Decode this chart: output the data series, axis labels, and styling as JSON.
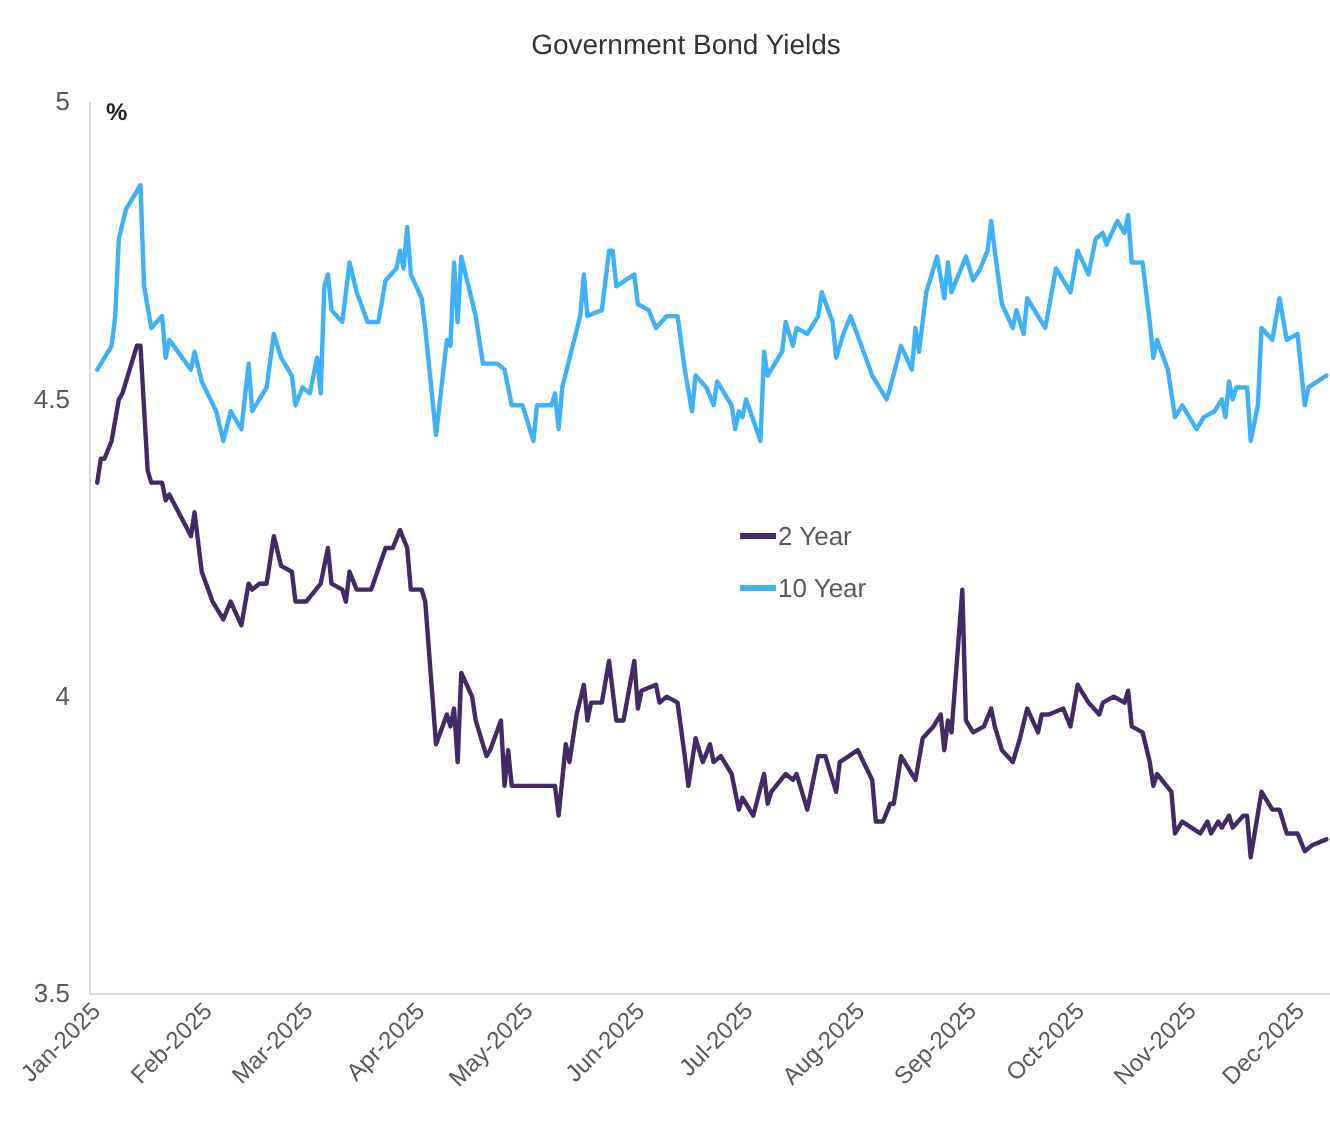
{
  "chart_data": {
    "type": "line",
    "title": "Government Bond Yields",
    "ylabel": "%",
    "xlim": [
      "2024-12-30",
      "2025-12-09"
    ],
    "xticks": [
      {
        "value": "2025-01-01",
        "label": "Jan-2025"
      },
      {
        "value": "2025-02-01",
        "label": "Feb-2025"
      },
      {
        "value": "2025-03-01",
        "label": "Mar-2025"
      },
      {
        "value": "2025-04-01",
        "label": "Apr-2025"
      },
      {
        "value": "2025-05-01",
        "label": "May-2025"
      },
      {
        "value": "2025-06-01",
        "label": "Jun-2025"
      },
      {
        "value": "2025-07-01",
        "label": "Jul-2025"
      },
      {
        "value": "2025-08-01",
        "label": "Aug-2025"
      },
      {
        "value": "2025-09-01",
        "label": "Sep-2025"
      },
      {
        "value": "2025-10-01",
        "label": "Oct-2025"
      },
      {
        "value": "2025-11-01",
        "label": "Nov-2025"
      },
      {
        "value": "2025-12-01",
        "label": "Dec-2025"
      }
    ],
    "ylim": [
      3.5,
      5
    ],
    "yticks": [
      3.5,
      4,
      4.5,
      5
    ],
    "legend": "center",
    "marker": "none",
    "line_style": "solid",
    "series": [
      {
        "name": "2 Year",
        "color": "#432a66",
        "x": [
          "2025-01-01",
          "2025-01-02",
          "2025-01-03",
          "2025-01-05",
          "2025-01-07",
          "2025-01-08",
          "2025-01-12",
          "2025-01-13",
          "2025-01-15",
          "2025-01-16",
          "2025-01-19",
          "2025-01-20",
          "2025-01-21",
          "2025-01-27",
          "2025-01-28",
          "2025-01-30",
          "2025-02-02",
          "2025-02-05",
          "2025-02-07",
          "2025-02-10",
          "2025-02-12",
          "2025-02-13",
          "2025-02-15",
          "2025-02-17",
          "2025-02-19",
          "2025-02-21",
          "2025-02-24",
          "2025-02-25",
          "2025-02-28",
          "2025-03-04",
          "2025-03-06",
          "2025-03-07",
          "2025-03-10",
          "2025-03-11",
          "2025-03-12",
          "2025-03-14",
          "2025-03-18",
          "2025-03-22",
          "2025-03-24",
          "2025-03-26",
          "2025-03-28",
          "2025-03-29",
          "2025-04-01",
          "2025-04-02",
          "2025-04-05",
          "2025-04-08",
          "2025-04-09",
          "2025-04-10",
          "2025-04-11",
          "2025-04-12",
          "2025-04-15",
          "2025-04-16",
          "2025-04-19",
          "2025-04-20",
          "2025-04-23",
          "2025-04-24",
          "2025-04-25",
          "2025-04-26",
          "2025-05-02",
          "2025-05-05",
          "2025-05-08",
          "2025-05-09",
          "2025-05-11",
          "2025-05-12",
          "2025-05-14",
          "2025-05-16",
          "2025-05-17",
          "2025-05-18",
          "2025-05-21",
          "2025-05-23",
          "2025-05-25",
          "2025-05-27",
          "2025-05-30",
          "2025-05-31",
          "2025-06-01",
          "2025-06-05",
          "2025-06-06",
          "2025-06-08",
          "2025-06-11",
          "2025-06-13",
          "2025-06-14",
          "2025-06-16",
          "2025-06-18",
          "2025-06-20",
          "2025-06-21",
          "2025-06-23",
          "2025-06-26",
          "2025-06-28",
          "2025-06-29",
          "2025-07-02",
          "2025-07-05",
          "2025-07-06",
          "2025-07-07",
          "2025-07-11",
          "2025-07-13",
          "2025-07-14",
          "2025-07-17",
          "2025-07-20",
          "2025-07-22",
          "2025-07-25",
          "2025-07-26",
          "2025-07-31",
          "2025-08-04",
          "2025-08-05",
          "2025-08-07",
          "2025-08-09",
          "2025-08-10",
          "2025-08-12",
          "2025-08-16",
          "2025-08-18",
          "2025-08-21",
          "2025-08-23",
          "2025-08-24",
          "2025-08-25",
          "2025-08-26",
          "2025-08-29",
          "2025-08-30",
          "2025-09-01",
          "2025-09-04",
          "2025-09-06",
          "2025-09-07",
          "2025-09-09",
          "2025-09-12",
          "2025-09-14",
          "2025-09-16",
          "2025-09-19",
          "2025-09-20",
          "2025-09-22",
          "2025-09-26",
          "2025-09-28",
          "2025-09-30",
          "2025-10-03",
          "2025-10-06",
          "2025-10-07",
          "2025-10-10",
          "2025-10-13",
          "2025-10-14",
          "2025-10-15",
          "2025-10-18",
          "2025-10-20",
          "2025-10-21",
          "2025-10-22",
          "2025-10-26",
          "2025-10-27",
          "2025-10-29",
          "2025-11-03",
          "2025-11-05",
          "2025-11-06",
          "2025-11-08",
          "2025-11-09",
          "2025-11-11",
          "2025-11-12",
          "2025-11-15",
          "2025-11-16",
          "2025-11-17",
          "2025-11-20",
          "2025-11-23",
          "2025-11-25",
          "2025-11-27",
          "2025-11-30",
          "2025-12-02",
          "2025-12-04",
          "2025-12-08"
        ],
        "values": [
          4.36,
          4.4,
          4.4,
          4.43,
          4.5,
          4.51,
          4.59,
          4.59,
          4.38,
          4.36,
          4.36,
          4.33,
          4.34,
          4.27,
          4.31,
          4.21,
          4.16,
          4.13,
          4.16,
          4.12,
          4.19,
          4.18,
          4.19,
          4.19,
          4.27,
          4.22,
          4.21,
          4.16,
          4.16,
          4.19,
          4.25,
          4.19,
          4.18,
          4.16,
          4.21,
          4.18,
          4.18,
          4.25,
          4.25,
          4.28,
          4.25,
          4.18,
          4.18,
          4.16,
          3.92,
          3.97,
          3.95,
          3.98,
          3.89,
          4.04,
          4.0,
          3.96,
          3.9,
          3.91,
          3.96,
          3.85,
          3.91,
          3.85,
          3.85,
          3.85,
          3.85,
          3.8,
          3.92,
          3.89,
          3.97,
          4.02,
          3.96,
          3.99,
          3.99,
          4.06,
          3.96,
          3.96,
          4.06,
          3.98,
          4.01,
          4.02,
          3.99,
          4.0,
          3.99,
          3.9,
          3.85,
          3.93,
          3.89,
          3.92,
          3.89,
          3.9,
          3.87,
          3.81,
          3.83,
          3.8,
          3.87,
          3.82,
          3.84,
          3.87,
          3.86,
          3.87,
          3.81,
          3.9,
          3.9,
          3.84,
          3.89,
          3.91,
          3.86,
          3.79,
          3.79,
          3.82,
          3.82,
          3.9,
          3.86,
          3.93,
          3.95,
          3.97,
          3.91,
          3.96,
          3.94,
          4.18,
          3.96,
          3.94,
          3.95,
          3.98,
          3.95,
          3.91,
          3.89,
          3.93,
          3.98,
          3.94,
          3.97,
          3.97,
          3.98,
          3.95,
          4.02,
          3.99,
          3.97,
          3.99,
          4.0,
          3.99,
          4.01,
          3.95,
          3.94,
          3.89,
          3.85,
          3.87,
          3.84,
          3.77,
          3.79,
          3.77,
          3.79,
          3.77,
          3.79,
          3.78,
          3.8,
          3.78,
          3.8,
          3.8,
          3.73,
          3.84,
          3.81,
          3.81,
          3.77,
          3.77,
          3.74,
          3.75,
          3.76
        ]
      },
      {
        "name": "10 Year",
        "color": "#3fb1fb",
        "x": [
          "2025-01-01",
          "2025-01-05",
          "2025-01-06",
          "2025-01-07",
          "2025-01-09",
          "2025-01-13",
          "2025-01-14",
          "2025-01-16",
          "2025-01-19",
          "2025-01-20",
          "2025-01-21",
          "2025-01-27",
          "2025-01-28",
          "2025-01-30",
          "2025-02-03",
          "2025-02-05",
          "2025-02-07",
          "2025-02-10",
          "2025-02-12",
          "2025-02-13",
          "2025-02-17",
          "2025-02-19",
          "2025-02-21",
          "2025-02-24",
          "2025-02-25",
          "2025-02-27",
          "2025-03-01",
          "2025-03-03",
          "2025-03-04",
          "2025-03-05",
          "2025-03-06",
          "2025-03-07",
          "2025-03-10",
          "2025-03-12",
          "2025-03-14",
          "2025-03-17",
          "2025-03-20",
          "2025-03-22",
          "2025-03-25",
          "2025-03-26",
          "2025-03-27",
          "2025-03-28",
          "2025-03-29",
          "2025-04-01",
          "2025-04-02",
          "2025-04-05",
          "2025-04-08",
          "2025-04-09",
          "2025-04-10",
          "2025-04-11",
          "2025-04-12",
          "2025-04-16",
          "2025-04-18",
          "2025-04-22",
          "2025-04-24",
          "2025-04-26",
          "2025-04-29",
          "2025-05-02",
          "2025-05-03",
          "2025-05-07",
          "2025-05-08",
          "2025-05-09",
          "2025-05-10",
          "2025-05-15",
          "2025-05-16",
          "2025-05-17",
          "2025-05-21",
          "2025-05-23",
          "2025-05-24",
          "2025-05-25",
          "2025-05-30",
          "2025-05-31",
          "2025-06-03",
          "2025-06-05",
          "2025-06-08",
          "2025-06-11",
          "2025-06-13",
          "2025-06-15",
          "2025-06-16",
          "2025-06-19",
          "2025-06-21",
          "2025-06-22",
          "2025-06-26",
          "2025-06-27",
          "2025-06-28",
          "2025-06-29",
          "2025-06-30",
          "2025-07-04",
          "2025-07-05",
          "2025-07-06",
          "2025-07-10",
          "2025-07-11",
          "2025-07-13",
          "2025-07-14",
          "2025-07-17",
          "2025-07-19",
          "2025-07-20",
          "2025-07-21",
          "2025-07-24",
          "2025-07-25",
          "2025-07-27",
          "2025-07-29",
          "2025-08-04",
          "2025-08-08",
          "2025-08-09",
          "2025-08-12",
          "2025-08-15",
          "2025-08-16",
          "2025-08-17",
          "2025-08-19",
          "2025-08-22",
          "2025-08-24",
          "2025-08-25",
          "2025-08-26",
          "2025-08-30",
          "2025-09-01",
          "2025-09-03",
          "2025-09-05",
          "2025-09-06",
          "2025-09-07",
          "2025-09-09",
          "2025-09-12",
          "2025-09-13",
          "2025-09-15",
          "2025-09-16",
          "2025-09-19",
          "2025-09-21",
          "2025-09-24",
          "2025-09-26",
          "2025-09-28",
          "2025-09-30",
          "2025-10-03",
          "2025-10-05",
          "2025-10-07",
          "2025-10-08",
          "2025-10-11",
          "2025-10-13",
          "2025-10-14",
          "2025-10-15",
          "2025-10-18",
          "2025-10-20",
          "2025-10-21",
          "2025-10-22",
          "2025-10-25",
          "2025-10-27",
          "2025-10-29",
          "2025-11-02",
          "2025-11-04",
          "2025-11-07",
          "2025-11-09",
          "2025-11-10",
          "2025-11-11",
          "2025-11-12",
          "2025-11-13",
          "2025-11-16",
          "2025-11-17",
          "2025-11-19",
          "2025-11-20",
          "2025-11-23",
          "2025-11-25",
          "2025-11-27",
          "2025-11-30",
          "2025-12-02",
          "2025-12-03",
          "2025-12-08"
        ],
        "values": [
          4.55,
          4.59,
          4.64,
          4.77,
          4.82,
          4.86,
          4.69,
          4.62,
          4.64,
          4.57,
          4.6,
          4.55,
          4.58,
          4.53,
          4.48,
          4.43,
          4.48,
          4.45,
          4.56,
          4.48,
          4.52,
          4.61,
          4.57,
          4.54,
          4.49,
          4.52,
          4.51,
          4.57,
          4.51,
          4.69,
          4.71,
          4.65,
          4.63,
          4.73,
          4.68,
          4.63,
          4.63,
          4.7,
          4.72,
          4.75,
          4.72,
          4.79,
          4.71,
          4.67,
          4.62,
          4.44,
          4.6,
          4.59,
          4.73,
          4.63,
          4.74,
          4.64,
          4.56,
          4.56,
          4.55,
          4.49,
          4.49,
          4.43,
          4.49,
          4.49,
          4.51,
          4.45,
          4.52,
          4.64,
          4.71,
          4.64,
          4.65,
          4.75,
          4.75,
          4.69,
          4.71,
          4.66,
          4.65,
          4.62,
          4.64,
          4.64,
          4.55,
          4.48,
          4.54,
          4.52,
          4.49,
          4.53,
          4.49,
          4.45,
          4.48,
          4.47,
          4.5,
          4.43,
          4.58,
          4.54,
          4.58,
          4.63,
          4.59,
          4.62,
          4.61,
          4.63,
          4.64,
          4.68,
          4.63,
          4.57,
          4.61,
          4.64,
          4.54,
          4.5,
          4.52,
          4.59,
          4.55,
          4.62,
          4.58,
          4.68,
          4.74,
          4.67,
          4.73,
          4.68,
          4.74,
          4.7,
          4.72,
          4.75,
          4.8,
          4.75,
          4.66,
          4.62,
          4.65,
          4.61,
          4.67,
          4.64,
          4.62,
          4.72,
          4.7,
          4.68,
          4.75,
          4.71,
          4.77,
          4.78,
          4.76,
          4.8,
          4.78,
          4.81,
          4.73,
          4.73,
          4.63,
          4.57,
          4.6,
          4.55,
          4.47,
          4.49,
          4.45,
          4.47,
          4.48,
          4.5,
          4.47,
          4.53,
          4.5,
          4.52,
          4.52,
          4.43,
          4.49,
          4.62,
          4.6,
          4.67,
          4.6,
          4.61,
          4.49,
          4.52,
          4.54
        ]
      }
    ]
  }
}
